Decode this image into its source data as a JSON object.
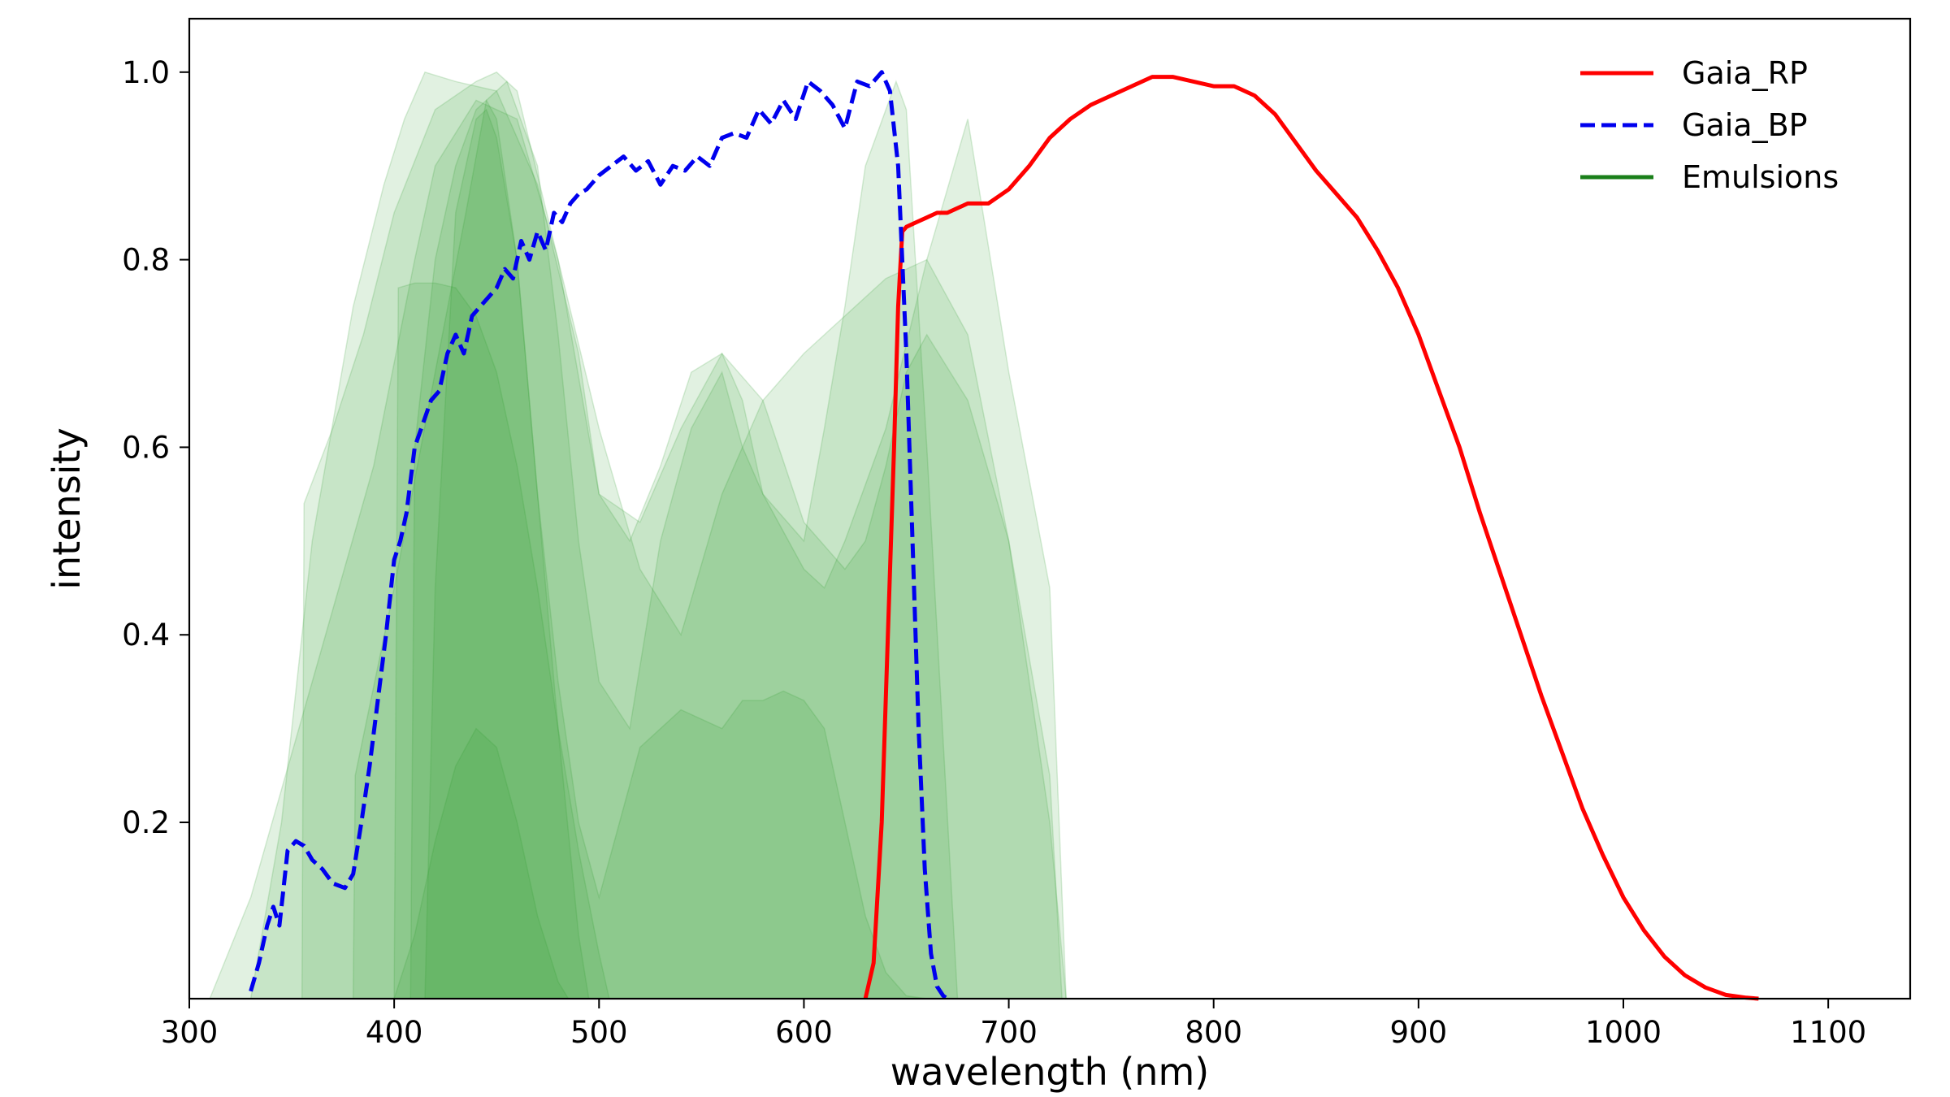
{
  "chart_data": {
    "type": "line",
    "title": "",
    "xlabel": "wavelength (nm)",
    "ylabel": "intensity",
    "xlim": [
      300,
      1140
    ],
    "ylim": [
      0.012,
      1.057
    ],
    "x_ticks": [
      300,
      400,
      500,
      600,
      700,
      800,
      900,
      1000,
      1100
    ],
    "x_tick_labels": [
      "300",
      "400",
      "500",
      "600",
      "700",
      "800",
      "900",
      "1000",
      "1100"
    ],
    "y_ticks": [
      0.2,
      0.4,
      0.6,
      0.8,
      1.0
    ],
    "y_tick_labels": [
      "0.2",
      "0.4",
      "0.6",
      "0.8",
      "1.0"
    ],
    "grid": false,
    "legend_position": "top-right",
    "legend": [
      {
        "label": "Gaia_RP",
        "color": "#ff0000",
        "style": "solid"
      },
      {
        "label": "Gaia_BP",
        "color": "#0000ee",
        "style": "dashed"
      },
      {
        "label": "Emulsions",
        "color": "#1a7f1a",
        "style": "solid"
      }
    ],
    "series": [
      {
        "name": "Gaia_RP",
        "color": "#ff0000",
        "style": "solid",
        "x": [
          630,
          634,
          638,
          641,
          644,
          646,
          648,
          650,
          655,
          660,
          665,
          670,
          675,
          680,
          690,
          700,
          710,
          720,
          730,
          740,
          750,
          760,
          770,
          780,
          790,
          800,
          810,
          820,
          830,
          840,
          850,
          860,
          870,
          880,
          890,
          900,
          910,
          920,
          930,
          940,
          950,
          960,
          970,
          980,
          990,
          1000,
          1010,
          1020,
          1030,
          1040,
          1050,
          1060,
          1066
        ],
        "y": [
          0.012,
          0.05,
          0.2,
          0.4,
          0.6,
          0.75,
          0.83,
          0.835,
          0.84,
          0.845,
          0.85,
          0.85,
          0.855,
          0.86,
          0.86,
          0.875,
          0.9,
          0.93,
          0.95,
          0.965,
          0.975,
          0.985,
          0.995,
          0.995,
          0.99,
          0.985,
          0.985,
          0.975,
          0.955,
          0.925,
          0.895,
          0.87,
          0.845,
          0.81,
          0.77,
          0.72,
          0.66,
          0.6,
          0.53,
          0.465,
          0.4,
          0.335,
          0.275,
          0.215,
          0.165,
          0.12,
          0.085,
          0.057,
          0.037,
          0.024,
          0.016,
          0.013,
          0.012
        ]
      },
      {
        "name": "Gaia_BP",
        "color": "#0000ee",
        "style": "dashed",
        "x": [
          330,
          334,
          338,
          341,
          344,
          346,
          348,
          352,
          356,
          360,
          365,
          370,
          376,
          380,
          384,
          388,
          392,
          396,
          400,
          403,
          406,
          410,
          414,
          418,
          422,
          426,
          430,
          434,
          438,
          442,
          446,
          450,
          454,
          458,
          462,
          466,
          470,
          474,
          478,
          482,
          486,
          490,
          494,
          500,
          506,
          512,
          518,
          524,
          530,
          536,
          542,
          548,
          554,
          560,
          566,
          572,
          578,
          584,
          590,
          596,
          602,
          608,
          614,
          620,
          626,
          632,
          638,
          642,
          646,
          650,
          653,
          656,
          659,
          662,
          665,
          668,
          670
        ],
        "y": [
          0.02,
          0.05,
          0.09,
          0.11,
          0.09,
          0.13,
          0.17,
          0.18,
          0.175,
          0.16,
          0.15,
          0.135,
          0.13,
          0.145,
          0.2,
          0.26,
          0.33,
          0.4,
          0.48,
          0.5,
          0.53,
          0.6,
          0.625,
          0.65,
          0.66,
          0.7,
          0.72,
          0.7,
          0.74,
          0.75,
          0.76,
          0.77,
          0.79,
          0.78,
          0.82,
          0.8,
          0.83,
          0.81,
          0.85,
          0.84,
          0.86,
          0.87,
          0.875,
          0.89,
          0.9,
          0.91,
          0.895,
          0.905,
          0.88,
          0.9,
          0.895,
          0.91,
          0.9,
          0.93,
          0.935,
          0.93,
          0.96,
          0.945,
          0.97,
          0.95,
          0.99,
          0.98,
          0.965,
          0.94,
          0.99,
          0.985,
          1.0,
          0.98,
          0.9,
          0.7,
          0.5,
          0.3,
          0.15,
          0.06,
          0.025,
          0.015,
          0.012
        ]
      }
    ],
    "emulsions": [
      {
        "x": [
          310,
          330,
          360,
          390,
          410,
          420,
          440,
          460,
          480,
          500,
          520,
          540,
          560,
          580,
          600,
          640,
          660,
          680,
          700,
          720,
          728
        ],
        "y": [
          0.012,
          0.12,
          0.35,
          0.58,
          0.8,
          0.9,
          0.97,
          0.95,
          0.8,
          0.62,
          0.47,
          0.4,
          0.55,
          0.65,
          0.7,
          0.78,
          0.8,
          0.72,
          0.5,
          0.2,
          0.012
        ]
      },
      {
        "x": [
          330,
          345,
          360,
          380,
          395,
          405,
          415,
          430,
          450,
          470,
          490,
          500,
          520,
          540,
          560,
          580,
          600,
          620,
          630,
          640,
          650,
          660,
          680,
          700,
          720,
          726
        ],
        "y": [
          0.012,
          0.2,
          0.5,
          0.75,
          0.88,
          0.95,
          1.0,
          0.99,
          0.98,
          0.88,
          0.7,
          0.55,
          0.52,
          0.62,
          0.7,
          0.65,
          0.52,
          0.47,
          0.5,
          0.58,
          0.68,
          0.72,
          0.65,
          0.5,
          0.25,
          0.012
        ]
      },
      {
        "x": [
          355,
          356,
          370,
          385,
          400,
          420,
          440,
          450,
          460,
          480,
          500,
          515,
          530,
          545,
          560,
          570,
          580,
          600,
          610,
          620,
          640,
          660,
          680,
          700,
          720,
          728
        ],
        "y": [
          0.012,
          0.54,
          0.62,
          0.72,
          0.85,
          0.96,
          0.99,
          1.0,
          0.98,
          0.8,
          0.55,
          0.5,
          0.58,
          0.68,
          0.7,
          0.65,
          0.55,
          0.47,
          0.45,
          0.5,
          0.62,
          0.8,
          0.95,
          0.68,
          0.45,
          0.012
        ]
      },
      {
        "x": [
          380,
          381,
          400,
          420,
          435,
          445,
          455,
          470,
          480,
          490,
          500,
          515,
          530,
          545,
          560,
          570,
          580,
          600,
          610,
          620,
          630,
          640,
          645,
          650,
          660,
          675
        ],
        "y": [
          0.012,
          0.25,
          0.45,
          0.68,
          0.85,
          0.97,
          0.99,
          0.9,
          0.72,
          0.5,
          0.35,
          0.3,
          0.5,
          0.62,
          0.68,
          0.6,
          0.55,
          0.5,
          0.62,
          0.75,
          0.9,
          0.96,
          0.99,
          0.96,
          0.6,
          0.012
        ]
      },
      {
        "x": [
          400,
          402,
          410,
          420,
          430,
          440,
          450,
          460,
          470,
          480,
          490,
          500,
          505
        ],
        "y": [
          0.012,
          0.77,
          0.775,
          0.775,
          0.77,
          0.74,
          0.68,
          0.58,
          0.45,
          0.3,
          0.17,
          0.06,
          0.012
        ]
      },
      {
        "x": [
          408,
          410,
          420,
          430,
          440,
          445,
          450,
          460,
          470,
          480,
          490,
          500,
          510,
          520,
          540,
          560,
          570,
          580,
          590,
          600,
          610,
          620,
          630,
          640,
          650,
          660
        ],
        "y": [
          0.012,
          0.6,
          0.8,
          0.9,
          0.96,
          0.97,
          0.95,
          0.8,
          0.55,
          0.35,
          0.2,
          0.12,
          0.2,
          0.28,
          0.32,
          0.3,
          0.33,
          0.33,
          0.34,
          0.33,
          0.3,
          0.2,
          0.1,
          0.04,
          0.015,
          0.012
        ]
      },
      {
        "x": [
          400,
          410,
          420,
          430,
          440,
          450,
          460,
          470,
          480,
          485
        ],
        "y": [
          0.012,
          0.08,
          0.18,
          0.26,
          0.3,
          0.28,
          0.2,
          0.1,
          0.03,
          0.012
        ]
      },
      {
        "x": [
          415,
          420,
          430,
          440,
          445,
          450,
          460,
          470,
          480,
          490,
          495
        ],
        "y": [
          0.012,
          0.45,
          0.85,
          0.95,
          0.96,
          0.93,
          0.8,
          0.55,
          0.3,
          0.08,
          0.012
        ]
      }
    ]
  }
}
